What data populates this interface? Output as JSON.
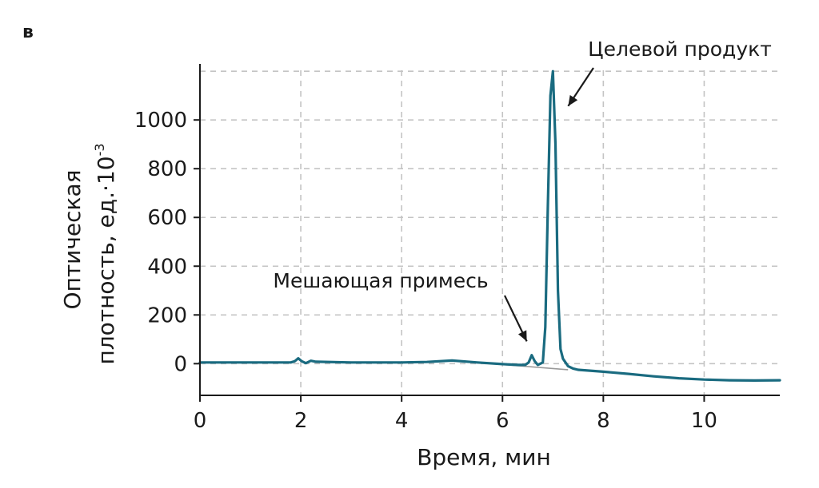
{
  "panel_label": "в",
  "chart_data": {
    "type": "line",
    "xlabel": "Время, мин",
    "ylabel_line1": "Оптическая",
    "ylabel_line2": "плотность, ед.·10",
    "ylabel_exponent": "-3",
    "xlim": [
      0,
      11.5
    ],
    "ylim": [
      -130,
      1230
    ],
    "xticks": [
      0,
      2,
      4,
      6,
      8,
      10
    ],
    "xtick_labels": [
      "0",
      "2",
      "4",
      "6",
      "8",
      "10"
    ],
    "yticks": [
      0,
      200,
      400,
      600,
      800,
      1000
    ],
    "ytick_labels": [
      "0",
      "200",
      "400",
      "600",
      "800",
      "1000"
    ],
    "grid_x": [
      2,
      4,
      6,
      8,
      10
    ],
    "grid_y": [
      0,
      200,
      400,
      600,
      800,
      1000,
      1200
    ],
    "grid": true,
    "series_color": "#1a6b80",
    "baseline_color": "#9a9a9a",
    "series": [
      {
        "values_note": "",
        "x": [
          0,
          1.0,
          1.8,
          1.88,
          1.95,
          2.02,
          2.1,
          2.2,
          2.3,
          3.0,
          4.0,
          4.5,
          5.0,
          5.5,
          6.0,
          6.3,
          6.45,
          6.52,
          6.58,
          6.64,
          6.7,
          6.8,
          6.85,
          6.9,
          6.95,
          7.0,
          7.05,
          7.1,
          7.15,
          7.2,
          7.3,
          7.4,
          7.5,
          8.0,
          8.5,
          9.0,
          9.5,
          10.0,
          10.5,
          11.0,
          11.5
        ],
        "y": [
          5,
          5,
          5,
          10,
          22,
          10,
          2,
          12,
          8,
          5,
          5,
          7,
          13,
          5,
          -2,
          -5,
          -5,
          5,
          35,
          10,
          -5,
          5,
          150,
          650,
          1100,
          1200,
          900,
          300,
          60,
          20,
          -10,
          -20,
          -25,
          -33,
          -42,
          -52,
          -60,
          -65,
          -68,
          -69,
          -68
        ]
      }
    ],
    "baseline": {
      "x": [
        5.0,
        7.3
      ],
      "y": [
        13,
        -25
      ]
    },
    "annotations": [
      {
        "text": "Целевой продукт",
        "point_x": 7.35,
        "point_y": 1070
      },
      {
        "text": "Мешающая примесь",
        "point_x": 6.45,
        "point_y": 85
      }
    ]
  }
}
